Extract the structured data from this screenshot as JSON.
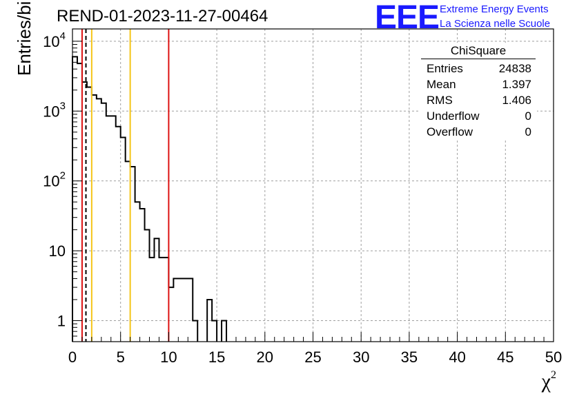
{
  "title": "REND-01-2023-11-27-00464",
  "logo": {
    "text": "EEE",
    "line1": "Extreme Energy Events",
    "line2": "La Scienza nelle Scuole"
  },
  "stats": {
    "name": "ChiSquare",
    "rows": [
      {
        "label": "Entries",
        "value": "24838"
      },
      {
        "label": "Mean",
        "value": "1.397"
      },
      {
        "label": "RMS",
        "value": "1.406"
      },
      {
        "label": "Underflow",
        "value": "0"
      },
      {
        "label": "Overflow",
        "value": "0"
      }
    ]
  },
  "colors": {
    "red": "#dd1111",
    "orange": "#f5c518",
    "histogram": "#000000",
    "grid": "#9e9e9e",
    "logo": "#1a1aff"
  },
  "chart_data": {
    "type": "histogram",
    "ylabel": "Entries/bin",
    "xlabel": "χ",
    "xlabel_superscript": "2",
    "xlim": [
      0,
      50
    ],
    "ylim": [
      0.5,
      15000
    ],
    "y_scale": "log",
    "grid": true,
    "bin_width": 0.5,
    "x_ticks": [
      0,
      5,
      10,
      15,
      20,
      25,
      30,
      35,
      40,
      45,
      50
    ],
    "x_tick_labels": [
      "0",
      "5",
      "10",
      "15",
      "20",
      "25",
      "30",
      "35",
      "40",
      "45",
      "50"
    ],
    "y_ticks": [
      1,
      10,
      100,
      1000,
      10000
    ],
    "y_tick_labels": [
      {
        "base": "1",
        "exp": ""
      },
      {
        "base": "10",
        "exp": ""
      },
      {
        "base": "10",
        "exp": "2"
      },
      {
        "base": "10",
        "exp": "3"
      },
      {
        "base": "10",
        "exp": "4"
      }
    ],
    "bin_counts": [
      6000,
      4800,
      2600,
      2200,
      1700,
      1500,
      1300,
      850,
      850,
      600,
      420,
      190,
      160,
      50,
      40,
      20,
      8,
      15,
      8,
      8,
      3,
      4,
      4,
      4,
      4,
      1,
      0,
      0,
      2,
      1,
      0,
      1,
      0,
      0,
      0
    ],
    "vertical_lines": [
      {
        "x": 1.0,
        "color": "red",
        "style": "solid"
      },
      {
        "x": 1.4,
        "color": "black",
        "style": "dashed"
      },
      {
        "x": 2.0,
        "color": "orange",
        "style": "solid"
      },
      {
        "x": 6.0,
        "color": "orange",
        "style": "solid"
      },
      {
        "x": 10.0,
        "color": "red",
        "style": "solid"
      }
    ]
  }
}
